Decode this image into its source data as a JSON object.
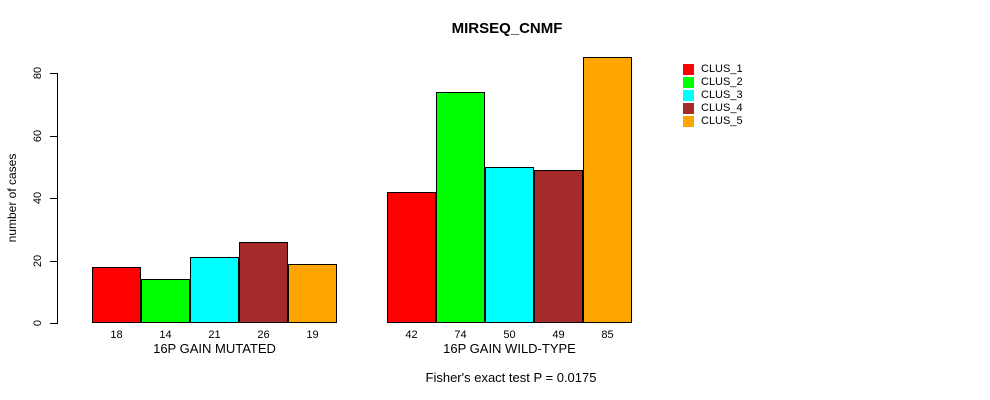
{
  "figure": {
    "title": "MIRSEQ_CNMF",
    "ylabel": "number of cases",
    "annotation": "Fisher's exact test P = 0.0175"
  },
  "chart_data": {
    "type": "bar",
    "title": "MIRSEQ_CNMF",
    "xlabel": "",
    "ylabel": "number of cases",
    "categories": [
      "16P GAIN MUTATED",
      "16P GAIN WILD-TYPE"
    ],
    "series": [
      {
        "name": "CLUS_1",
        "color": "#FF0000",
        "values": [
          18,
          42
        ]
      },
      {
        "name": "CLUS_2",
        "color": "#00FF00",
        "values": [
          14,
          74
        ]
      },
      {
        "name": "CLUS_3",
        "color": "#00FFFF",
        "values": [
          21,
          50
        ]
      },
      {
        "name": "CLUS_4",
        "color": "#A52A2A",
        "values": [
          26,
          49
        ]
      },
      {
        "name": "CLUS_5",
        "color": "#FFA500",
        "values": [
          19,
          85
        ]
      }
    ],
    "yticks": [
      0,
      20,
      40,
      60,
      80
    ],
    "ylim": [
      0,
      85
    ],
    "bar_value_labels": true,
    "grid": false,
    "legend_position": "right",
    "annotation": "Fisher's exact test P = 0.0175",
    "bar_border_color": "#000000",
    "axis_color": "#000000",
    "text_color": "#000000",
    "background": "#FFFFFF"
  }
}
